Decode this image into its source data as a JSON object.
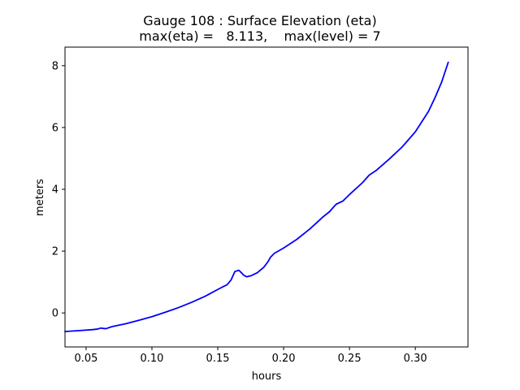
{
  "chart_data": {
    "type": "line",
    "title": "Gauge 108 : Surface Elevation (eta)",
    "subtitle": "max(eta) =   8.113,    max(level) = 7",
    "xlabel": "hours",
    "ylabel": "meters",
    "xlim": [
      0.034,
      0.34
    ],
    "ylim": [
      -1.1,
      8.6
    ],
    "xticks": [
      0.05,
      0.1,
      0.15,
      0.2,
      0.25,
      0.3
    ],
    "xtick_labels": [
      "0.05",
      "0.10",
      "0.15",
      "0.20",
      "0.25",
      "0.30"
    ],
    "yticks": [
      0,
      2,
      4,
      6,
      8
    ],
    "ytick_labels": [
      "0",
      "2",
      "4",
      "6",
      "8"
    ],
    "grid": false,
    "series": [
      {
        "color": "#0000ff",
        "x": [
          0.034,
          0.045,
          0.055,
          0.059,
          0.061,
          0.065,
          0.07,
          0.08,
          0.09,
          0.1,
          0.11,
          0.12,
          0.13,
          0.14,
          0.15,
          0.155,
          0.157,
          0.16,
          0.163,
          0.166,
          0.168,
          0.17,
          0.172,
          0.175,
          0.18,
          0.185,
          0.188,
          0.19,
          0.193,
          0.2,
          0.21,
          0.22,
          0.23,
          0.235,
          0.238,
          0.24,
          0.245,
          0.25,
          0.26,
          0.265,
          0.27,
          0.28,
          0.29,
          0.3,
          0.31,
          0.315,
          0.32,
          0.325
        ],
        "y": [
          -0.6,
          -0.57,
          -0.54,
          -0.52,
          -0.49,
          -0.51,
          -0.44,
          -0.35,
          -0.24,
          -0.12,
          0.02,
          0.17,
          0.34,
          0.53,
          0.76,
          0.87,
          0.91,
          1.06,
          1.34,
          1.38,
          1.3,
          1.21,
          1.17,
          1.2,
          1.3,
          1.48,
          1.65,
          1.8,
          1.93,
          2.1,
          2.38,
          2.72,
          3.11,
          3.28,
          3.43,
          3.52,
          3.62,
          3.83,
          4.22,
          4.46,
          4.6,
          4.97,
          5.37,
          5.86,
          6.52,
          6.97,
          7.47,
          8.11
        ]
      }
    ]
  }
}
